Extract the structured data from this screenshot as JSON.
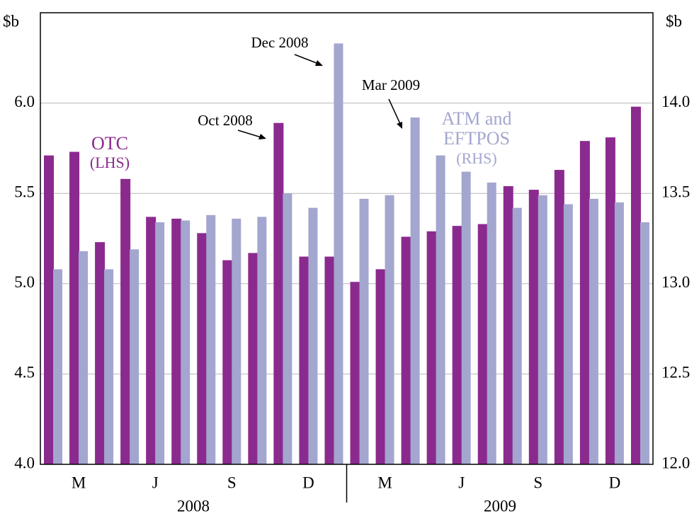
{
  "chart_data": {
    "type": "bar",
    "y_unit": "$b",
    "y2_unit": "$b",
    "categories": [
      null,
      "M",
      null,
      null,
      "J",
      null,
      null,
      "S",
      null,
      null,
      "D",
      null,
      null,
      "M",
      null,
      null,
      "J",
      null,
      null,
      "S",
      null,
      null,
      "D",
      null
    ],
    "year_labels": [
      "2008",
      "2009"
    ],
    "series": [
      {
        "label": [
          "OTC",
          "(LHS)"
        ],
        "color": "#8b2a8e",
        "axis": "y",
        "values": [
          5.71,
          5.73,
          5.23,
          5.58,
          5.37,
          5.36,
          5.28,
          5.13,
          5.17,
          5.89,
          5.15,
          5.15,
          5.01,
          5.08,
          5.26,
          5.29,
          5.32,
          5.33,
          5.54,
          5.52,
          5.63,
          5.79,
          5.81,
          5.98
        ]
      },
      {
        "label": [
          "ATM and",
          "EFTPOS",
          "(RHS)"
        ],
        "color": "#a3a6cf",
        "axis": "y2",
        "values": [
          13.08,
          13.18,
          13.08,
          13.19,
          13.34,
          13.35,
          13.38,
          13.36,
          13.37,
          13.5,
          13.42,
          14.33,
          13.47,
          13.49,
          13.92,
          13.71,
          13.62,
          13.56,
          13.42,
          13.49,
          13.44,
          13.47,
          13.45,
          13.34
        ]
      }
    ],
    "annotations": [
      "Oct 2008",
      "Dec 2008",
      "Mar 2009"
    ],
    "ylim": [
      4,
      6.5
    ],
    "yticks": [
      {
        "value": 4,
        "label": "4.0"
      },
      {
        "value": 4.5,
        "label": "4.5"
      },
      {
        "value": 5,
        "label": "5.0"
      },
      {
        "value": 5.5,
        "label": "5.5"
      },
      {
        "value": 6,
        "label": "6.0"
      }
    ],
    "y2lim": [
      12,
      14.5
    ],
    "y2ticks": [
      {
        "value": 12,
        "label": "12.0"
      },
      {
        "value": 12.5,
        "label": "12.5"
      },
      {
        "value": 13,
        "label": "13.0"
      },
      {
        "value": 13.5,
        "label": "13.5"
      },
      {
        "value": 14,
        "label": "14.0"
      }
    ],
    "grid": true
  }
}
